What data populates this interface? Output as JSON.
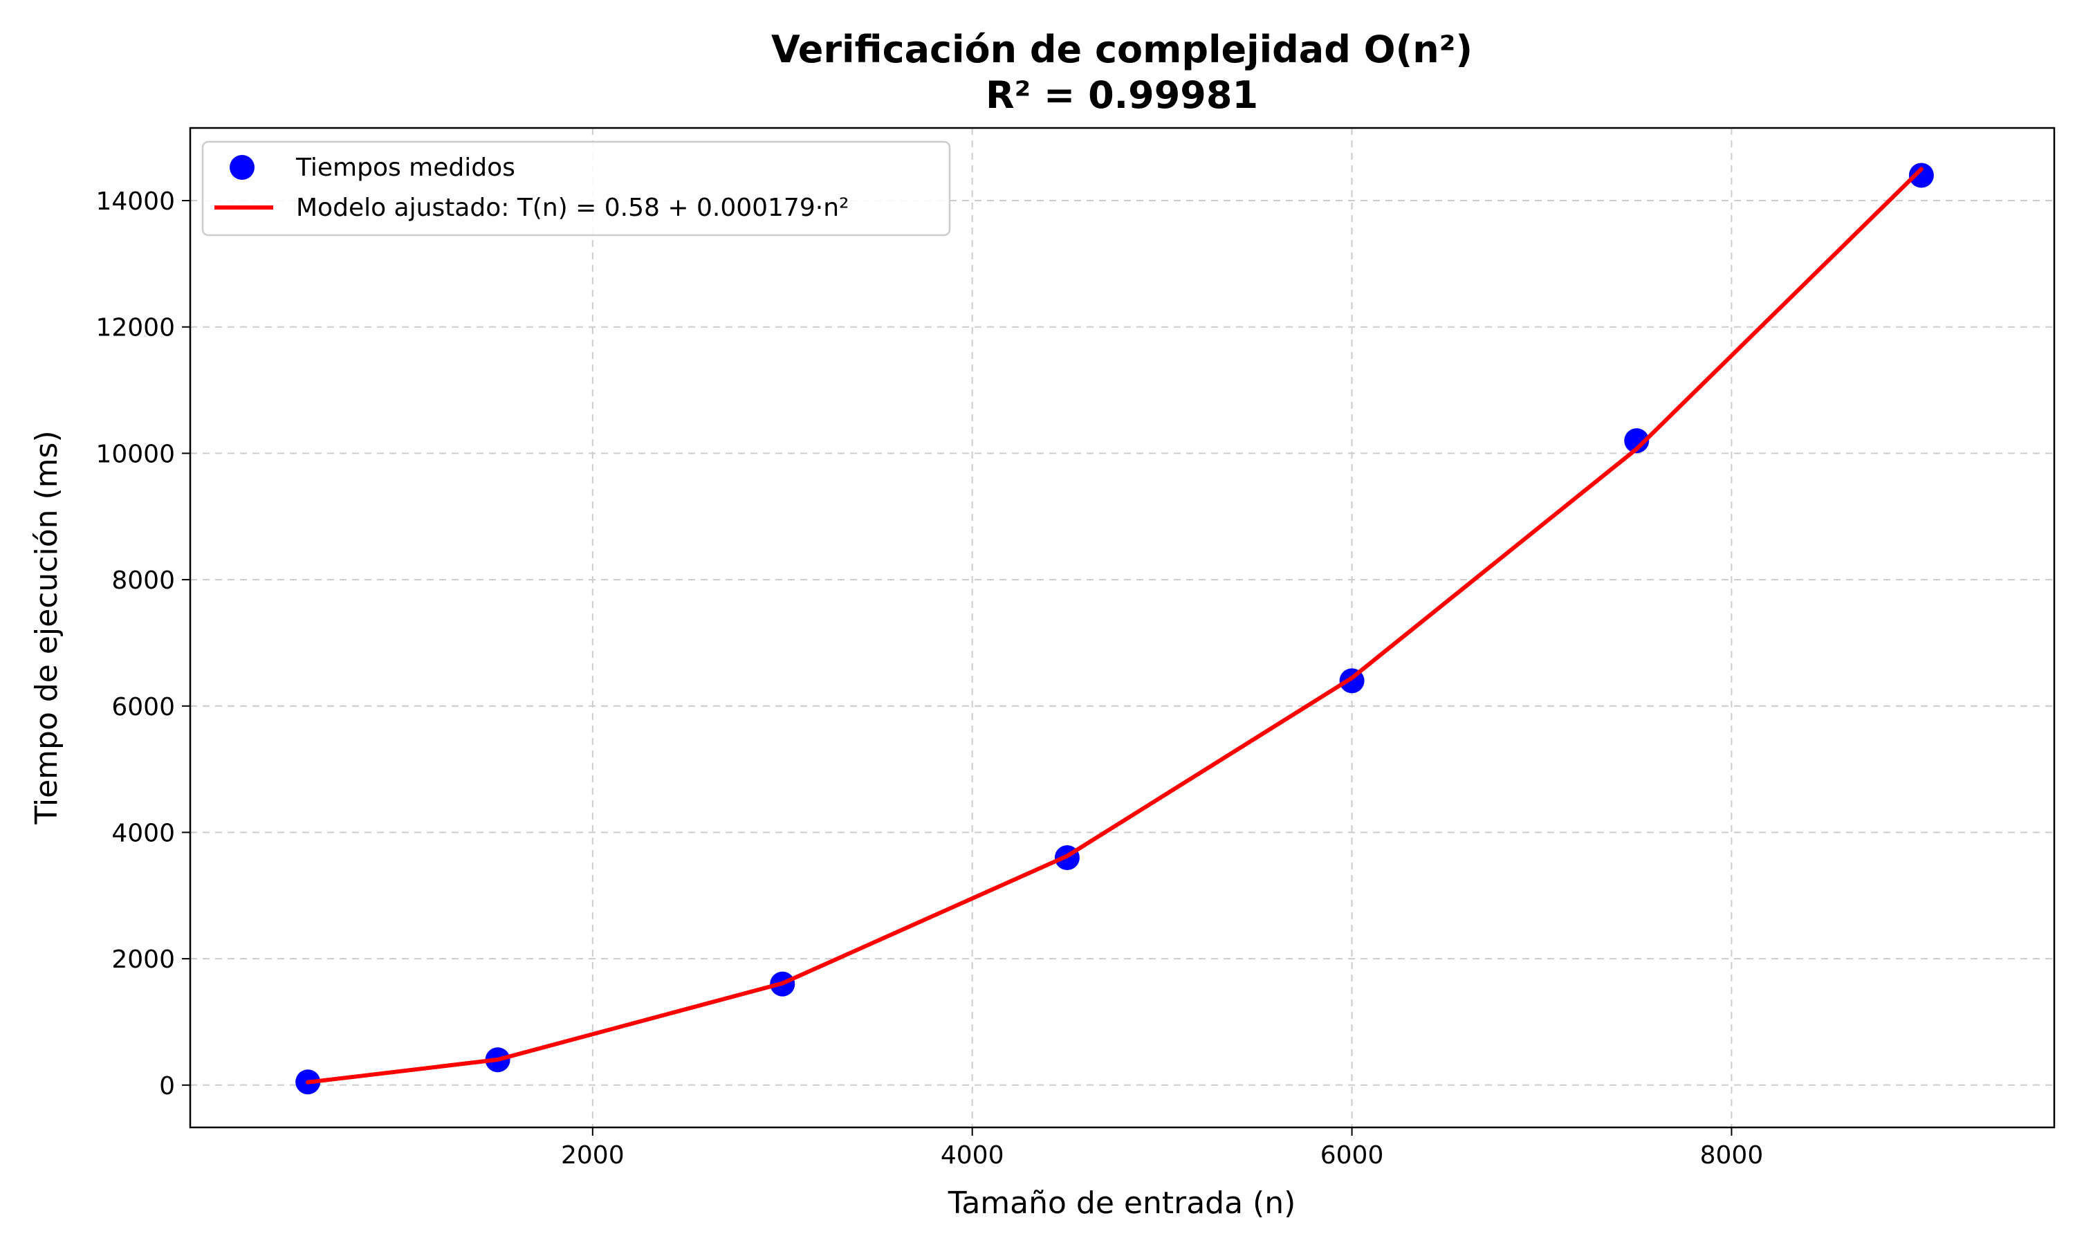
{
  "chart_data": {
    "type": "scatter",
    "title": "Verificación de complejidad O(n²)",
    "subtitle": "R² = 0.99981",
    "xlabel": "Tamaño de entrada (n)",
    "ylabel": "Tiempo de ejecución (ms)",
    "xlim": [
      -120,
      9700
    ],
    "ylim": [
      -670,
      15150
    ],
    "xticks": [
      2000,
      4000,
      6000,
      8000
    ],
    "yticks": [
      0,
      2000,
      4000,
      6000,
      8000,
      10000,
      12000,
      14000
    ],
    "grid": true,
    "legend_position": "top-left",
    "series": [
      {
        "name": "Tiempos medidos",
        "kind": "scatter",
        "color": "#0000ff",
        "x": [
          500,
          1500,
          3000,
          4500,
          6000,
          7500,
          9000
        ],
        "y": [
          50,
          400,
          1600,
          3600,
          6400,
          10200,
          14400
        ]
      },
      {
        "name": "Modelo ajustado: T(n) = 0.58 + 0.000179·n²",
        "kind": "line",
        "color": "#ff0000",
        "x": [
          500,
          1500,
          3000,
          4500,
          6000,
          7500,
          9000
        ],
        "y": [
          45,
          403,
          1612,
          3626,
          6445,
          10070,
          14500
        ]
      }
    ]
  }
}
